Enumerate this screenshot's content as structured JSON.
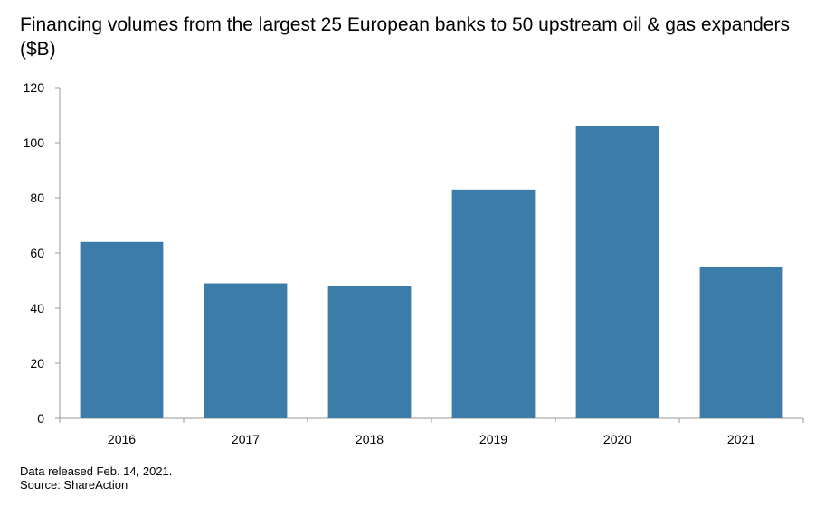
{
  "chart_data": {
    "type": "bar",
    "title": "Financing volumes from the largest 25 European banks to 50 upstream oil & gas expanders ($B)",
    "categories": [
      "2016",
      "2017",
      "2018",
      "2019",
      "2020",
      "2021"
    ],
    "values": [
      64,
      49,
      48,
      83,
      106,
      55
    ],
    "ylim": [
      0,
      120
    ],
    "yticks": [
      0,
      20,
      40,
      60,
      80,
      100,
      120
    ],
    "xlabel": "",
    "ylabel": "",
    "bar_color": "#3b7ca9",
    "axis_color": "#9a9a9a",
    "grid": false,
    "legend": "none"
  },
  "footnotes": {
    "note": "Data released Feb. 14, 2021.",
    "source": "Source: ShareAction"
  }
}
